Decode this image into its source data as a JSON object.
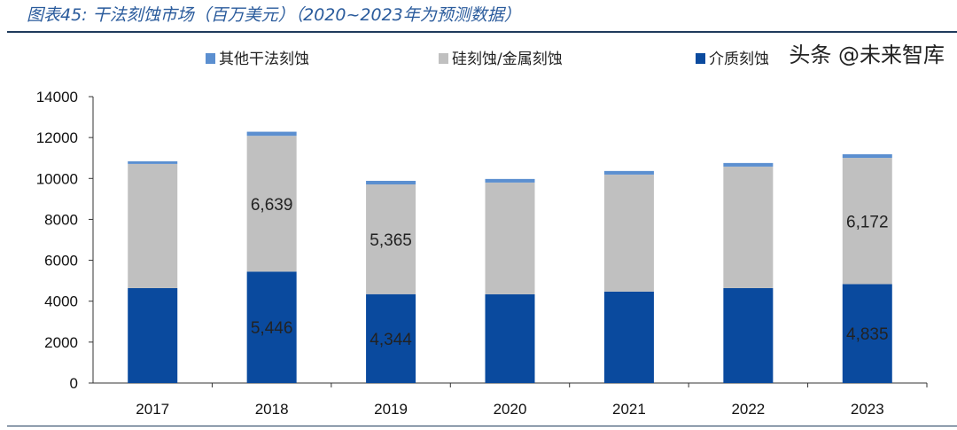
{
  "title": "图表45:  干法刻蚀市场（百万美元）（2020~2023年为预测数据）",
  "watermark": "头条 @未来智库",
  "chart_data": {
    "type": "bar",
    "stacked": true,
    "title": "图表45:  干法刻蚀市场（百万美元）（2020~2023年为预测数据）",
    "categories": [
      "2017",
      "2018",
      "2019",
      "2020",
      "2021",
      "2022",
      "2023"
    ],
    "series": [
      {
        "name": "介质刻蚀",
        "color": "#0a4a9e",
        "values": [
          4640,
          5446,
          4344,
          4340,
          4470,
          4640,
          4835
        ],
        "labels": [
          "",
          "5,446",
          "4,344",
          "",
          "",
          "",
          "4,835"
        ]
      },
      {
        "name": "硅刻蚀/金属刻蚀",
        "color": "#c0c0c0",
        "values": [
          6070,
          6639,
          5365,
          5460,
          5720,
          5940,
          6172
        ],
        "labels": [
          "",
          "6,639",
          "5,365",
          "",
          "",
          "",
          "6,172"
        ]
      },
      {
        "name": "其他干法刻蚀",
        "color": "#5b8fd0",
        "values": [
          130,
          200,
          175,
          175,
          175,
          175,
          175
        ],
        "labels": [
          "",
          "",
          "",
          "",
          "",
          "",
          ""
        ]
      }
    ],
    "legend_order": [
      2,
      1,
      0
    ],
    "legend_position": "top",
    "ylim": [
      0,
      14000
    ],
    "yticks": [
      "0",
      "2000",
      "4000",
      "6000",
      "8000",
      "10000",
      "12000",
      "14000"
    ],
    "grid": false,
    "xlabel": "",
    "ylabel": ""
  }
}
